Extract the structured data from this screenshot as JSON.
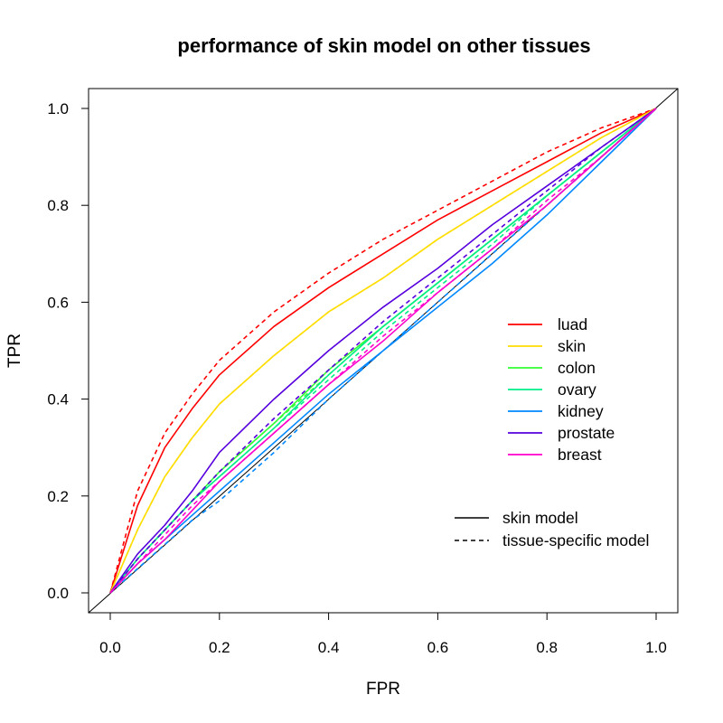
{
  "chart_data": {
    "type": "line",
    "title": "performance of skin model on other tissues",
    "xlabel": "FPR",
    "ylabel": "TPR",
    "xlim": [
      0.0,
      1.0
    ],
    "ylim": [
      0.0,
      1.0
    ],
    "xticks": [
      "0.0",
      "0.2",
      "0.4",
      "0.6",
      "0.8",
      "1.0"
    ],
    "yticks": [
      "0.0",
      "0.2",
      "0.4",
      "0.6",
      "0.8",
      "1.0"
    ],
    "grid": false,
    "legend_position": "right",
    "diagonal_reference": true,
    "x": [
      0.0,
      0.05,
      0.1,
      0.15,
      0.2,
      0.3,
      0.4,
      0.5,
      0.6,
      0.7,
      0.8,
      0.9,
      1.0
    ],
    "series": [
      {
        "name": "luad",
        "model": "skin model",
        "color": "#ff0000",
        "values": [
          0.0,
          0.18,
          0.3,
          0.38,
          0.45,
          0.55,
          0.63,
          0.7,
          0.77,
          0.83,
          0.89,
          0.95,
          1.0
        ]
      },
      {
        "name": "luad",
        "model": "tissue-specific model",
        "color": "#ff0000",
        "values": [
          0.0,
          0.21,
          0.33,
          0.41,
          0.48,
          0.58,
          0.66,
          0.73,
          0.79,
          0.85,
          0.91,
          0.96,
          1.0
        ]
      },
      {
        "name": "skin",
        "model": "skin model",
        "color": "#ffdd00",
        "values": [
          0.0,
          0.13,
          0.24,
          0.32,
          0.39,
          0.49,
          0.58,
          0.65,
          0.73,
          0.8,
          0.87,
          0.94,
          1.0
        ]
      },
      {
        "name": "skin",
        "model": "tissue-specific model",
        "color": "#ffdd00",
        "values": [
          0.0,
          0.13,
          0.24,
          0.32,
          0.39,
          0.49,
          0.58,
          0.65,
          0.73,
          0.8,
          0.87,
          0.94,
          1.0
        ]
      },
      {
        "name": "colon",
        "model": "skin model",
        "color": "#33ff33",
        "values": [
          0.0,
          0.07,
          0.13,
          0.19,
          0.25,
          0.35,
          0.46,
          0.55,
          0.64,
          0.73,
          0.82,
          0.91,
          1.0
        ]
      },
      {
        "name": "colon",
        "model": "tissue-specific model",
        "color": "#33ff33",
        "values": [
          0.0,
          0.07,
          0.13,
          0.19,
          0.25,
          0.35,
          0.45,
          0.55,
          0.64,
          0.73,
          0.82,
          0.91,
          1.0
        ]
      },
      {
        "name": "ovary",
        "model": "skin model",
        "color": "#00ee88",
        "values": [
          0.0,
          0.07,
          0.13,
          0.19,
          0.24,
          0.34,
          0.45,
          0.55,
          0.64,
          0.73,
          0.82,
          0.91,
          1.0
        ]
      },
      {
        "name": "ovary",
        "model": "tissue-specific model",
        "color": "#00ee88",
        "values": [
          0.0,
          0.07,
          0.13,
          0.19,
          0.24,
          0.34,
          0.44,
          0.54,
          0.63,
          0.72,
          0.82,
          0.91,
          1.0
        ]
      },
      {
        "name": "kidney",
        "model": "skin model",
        "color": "#0088ff",
        "values": [
          0.0,
          0.06,
          0.11,
          0.16,
          0.21,
          0.31,
          0.41,
          0.5,
          0.59,
          0.68,
          0.78,
          0.89,
          1.0
        ]
      },
      {
        "name": "kidney",
        "model": "tissue-specific model",
        "color": "#0088ff",
        "values": [
          0.0,
          0.05,
          0.1,
          0.15,
          0.19,
          0.29,
          0.4,
          0.5,
          0.6,
          0.7,
          0.8,
          0.9,
          1.0
        ]
      },
      {
        "name": "prostate",
        "model": "skin model",
        "color": "#5500dd",
        "values": [
          0.0,
          0.08,
          0.14,
          0.21,
          0.29,
          0.4,
          0.5,
          0.59,
          0.67,
          0.76,
          0.84,
          0.92,
          1.0
        ]
      },
      {
        "name": "prostate",
        "model": "tissue-specific model",
        "color": "#5500dd",
        "values": [
          0.0,
          0.07,
          0.13,
          0.19,
          0.25,
          0.36,
          0.46,
          0.56,
          0.65,
          0.74,
          0.83,
          0.92,
          1.0
        ]
      },
      {
        "name": "breast",
        "model": "skin model",
        "color": "#ff00cc",
        "values": [
          0.0,
          0.06,
          0.11,
          0.17,
          0.23,
          0.33,
          0.43,
          0.52,
          0.62,
          0.71,
          0.8,
          0.9,
          1.0
        ]
      },
      {
        "name": "breast",
        "model": "tissue-specific model",
        "color": "#ff00cc",
        "values": [
          0.0,
          0.06,
          0.12,
          0.18,
          0.23,
          0.33,
          0.43,
          0.53,
          0.62,
          0.71,
          0.81,
          0.9,
          1.0
        ]
      }
    ],
    "legend_tissues": [
      {
        "label": "luad",
        "color": "#ff0000"
      },
      {
        "label": "skin",
        "color": "#ffdd00"
      },
      {
        "label": "colon",
        "color": "#33ff33"
      },
      {
        "label": "ovary",
        "color": "#00ee88"
      },
      {
        "label": "kidney",
        "color": "#0088ff"
      },
      {
        "label": "prostate",
        "color": "#5500dd"
      },
      {
        "label": "breast",
        "color": "#ff00cc"
      }
    ],
    "legend_models": [
      {
        "label": "skin model",
        "dash": "solid"
      },
      {
        "label": "tissue-specific model",
        "dash": "dashed"
      }
    ]
  }
}
